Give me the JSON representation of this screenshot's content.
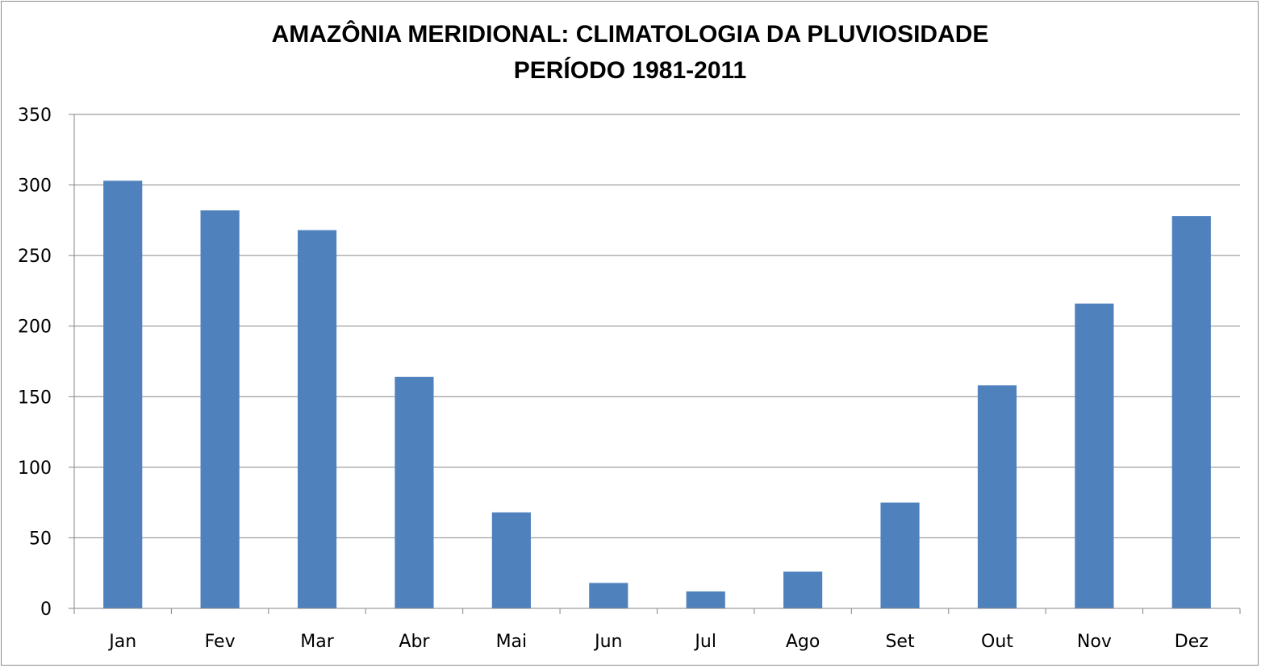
{
  "chart_data": {
    "type": "bar",
    "title_lines": [
      "AMAZÔNIA MERIDIONAL: CLIMATOLOGIA DA PLUVIOSIDADE",
      "PERÍODO 1981-2011"
    ],
    "categories": [
      "Jan",
      "Fev",
      "Mar",
      "Abr",
      "Mai",
      "Jun",
      "Jul",
      "Ago",
      "Set",
      "Out",
      "Nov",
      "Dez"
    ],
    "values": [
      303,
      282,
      268,
      164,
      68,
      18,
      12,
      26,
      75,
      158,
      216,
      278
    ],
    "ylim": [
      0,
      350
    ],
    "yticks": [
      0,
      50,
      100,
      150,
      200,
      250,
      300,
      350
    ],
    "xlabel": "",
    "ylabel": "",
    "grid": true,
    "legend": "none",
    "colors": {
      "bar": "#4f81bd",
      "grid": "#868686",
      "axis": "#868686"
    }
  }
}
